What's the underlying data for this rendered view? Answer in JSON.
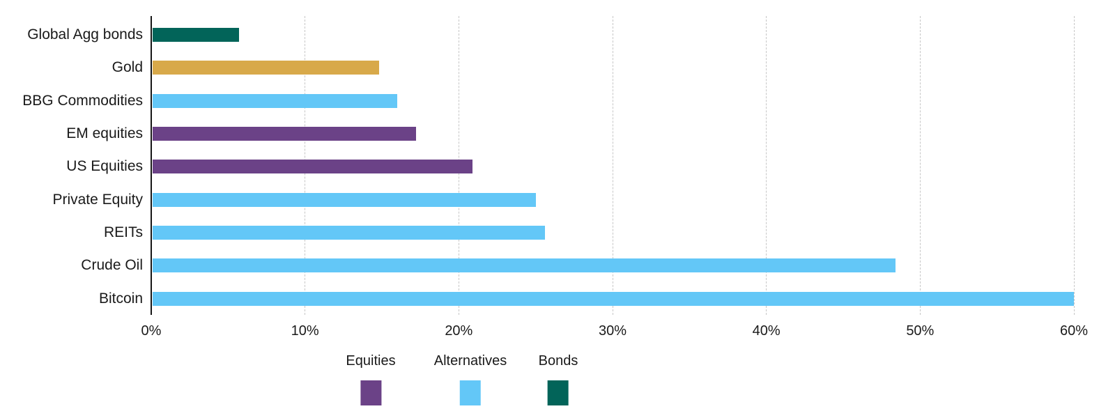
{
  "chart_data": {
    "type": "bar",
    "orientation": "horizontal",
    "title": "",
    "xlabel": "",
    "ylabel": "",
    "unit": "%",
    "xlim": [
      0,
      60
    ],
    "x_ticks": [
      "0%",
      "10%",
      "20%",
      "30%",
      "40%",
      "50%",
      "60%"
    ],
    "x_tick_values": [
      0,
      10,
      20,
      30,
      40,
      50,
      60
    ],
    "grid": "vertical-dashed",
    "bars": [
      {
        "label": "Global Agg bonds",
        "value": 5.7,
        "group": "Bonds",
        "color": "#026459"
      },
      {
        "label": "Gold",
        "value": 14.8,
        "group": "Gold",
        "color": "#D8A94A"
      },
      {
        "label": "BBG Commodities",
        "value": 16.0,
        "group": "Alternatives",
        "color": "#63C7F7"
      },
      {
        "label": "EM equities",
        "value": 17.2,
        "group": "Equities",
        "color": "#6B4287"
      },
      {
        "label": "US Equities",
        "value": 20.9,
        "group": "Equities",
        "color": "#6B4287"
      },
      {
        "label": "Private Equity",
        "value": 25.0,
        "group": "Alternatives",
        "color": "#63C7F7"
      },
      {
        "label": "REITs",
        "value": 25.6,
        "group": "Alternatives",
        "color": "#63C7F7"
      },
      {
        "label": "Crude Oil",
        "value": 48.4,
        "group": "Alternatives",
        "color": "#63C7F7"
      },
      {
        "label": "Bitcoin",
        "value": 60.0,
        "group": "Alternatives",
        "color": "#63C7F7"
      }
    ],
    "legend": {
      "position": "bottom",
      "items": [
        {
          "label": "Equities",
          "color": "#6B4287"
        },
        {
          "label": "Alternatives",
          "color": "#63C7F7"
        },
        {
          "label": "Bonds",
          "color": "#026459"
        }
      ]
    },
    "colors": {
      "axis": "#161616",
      "gridline": "#C6C6C6",
      "text": "#1A1A1A",
      "background": "#FFFFFF"
    }
  }
}
